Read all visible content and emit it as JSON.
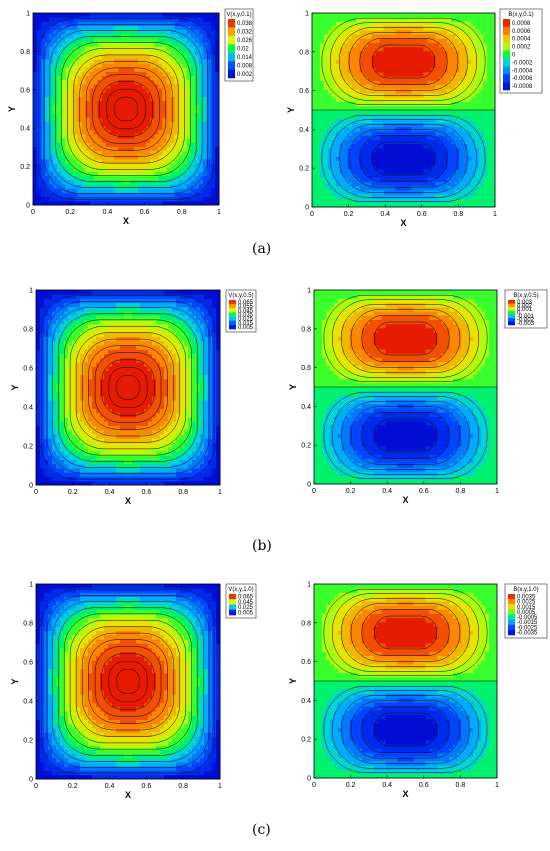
{
  "chart_data": [
    {
      "panel": "V-a",
      "type": "heatmap",
      "field": "V",
      "title": "V(x,y,0.1)",
      "xlabel": "X",
      "ylabel": "Y",
      "xlim": [
        0,
        1
      ],
      "ylim": [
        0,
        1
      ],
      "ticks": [
        "0",
        "0.2",
        "0.4",
        "0.6",
        "0.8",
        "1"
      ],
      "legend_values": [
        "0.038",
        "0.032",
        "0.026",
        "0.02",
        "0.014",
        "0.008",
        "0.002"
      ],
      "vmin": 0.0,
      "vmax": 0.041,
      "legend": "top-right"
    },
    {
      "panel": "B-a",
      "type": "heatmap",
      "field": "B",
      "title": "B(x,y,0.1)",
      "xlabel": "X",
      "ylabel": "Y",
      "xlim": [
        0,
        1
      ],
      "ylim": [
        0,
        1
      ],
      "ticks": [
        "0",
        "0.2",
        "0.4",
        "0.6",
        "0.8",
        "1"
      ],
      "legend_values": [
        "0.0008",
        "0.0006",
        "0.0004",
        "0.0002",
        "0",
        "-0.0002",
        "-0.0004",
        "-0.0006",
        "-0.0008"
      ],
      "vmin": -0.0009,
      "vmax": 0.0009,
      "legend": "top-right"
    },
    {
      "panel": "V-b",
      "type": "heatmap",
      "field": "V",
      "title": "V(x,y,0.5)",
      "xlabel": "X",
      "ylabel": "Y",
      "xlim": [
        0,
        1
      ],
      "ylim": [
        0,
        1
      ],
      "ticks": [
        "0",
        "0.2",
        "0.4",
        "0.6",
        "0.8",
        "1"
      ],
      "legend_values": [
        "0.065",
        "0.055",
        "0.045",
        "0.035",
        "0.025",
        "0.015",
        "0.005"
      ],
      "vmin": 0.0,
      "vmax": 0.07,
      "legend": "top-right"
    },
    {
      "panel": "B-b",
      "type": "heatmap",
      "field": "B",
      "title": "B(x,y,0.5)",
      "xlabel": "X",
      "ylabel": "Y",
      "xlim": [
        0,
        1
      ],
      "ylim": [
        0,
        1
      ],
      "ticks": [
        "0",
        "0.2",
        "0.4",
        "0.6",
        "0.8",
        "1"
      ],
      "legend_values": [
        "0.003",
        "0.002",
        "0.001",
        "0",
        "-0.001",
        "-0.002",
        "-0.003"
      ],
      "vmin": -0.0034,
      "vmax": 0.0034,
      "legend": "top-right"
    },
    {
      "panel": "V-c",
      "type": "heatmap",
      "field": "V",
      "title": "V(x,y,1.0)",
      "xlabel": "X",
      "ylabel": "Y",
      "xlim": [
        0,
        1
      ],
      "ylim": [
        0,
        1
      ],
      "ticks": [
        "0",
        "0.2",
        "0.4",
        "0.6",
        "0.8",
        "1"
      ],
      "legend_values": [
        "0.065",
        "0.045",
        "0.025",
        "0.005"
      ],
      "vmin": 0.0,
      "vmax": 0.07,
      "legend": "top-right"
    },
    {
      "panel": "B-c",
      "type": "heatmap",
      "field": "B",
      "title": "B(x,y,1.0)",
      "xlabel": "X",
      "ylabel": "Y",
      "xlim": [
        0,
        1
      ],
      "ylim": [
        0,
        1
      ],
      "ticks": [
        "0",
        "0.2",
        "0.4",
        "0.6",
        "0.8",
        "1"
      ],
      "legend_values": [
        "0.0035",
        "0.0025",
        "0.0015",
        "0.0005",
        "-0.0005",
        "-0.0015",
        "-0.0025",
        "-0.0035"
      ],
      "vmin": -0.004,
      "vmax": 0.004,
      "legend": "top-right"
    }
  ],
  "captions": [
    "(a)",
    "(b)",
    "(c)"
  ]
}
